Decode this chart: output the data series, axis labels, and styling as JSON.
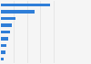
{
  "values": [
    75,
    52,
    22,
    17,
    14,
    11,
    9,
    7,
    4
  ],
  "bar_color": "#2f7ed8",
  "background_color": "#f5f5f5",
  "grid_color": "#e0e0e0",
  "xlim": [
    0,
    100
  ]
}
